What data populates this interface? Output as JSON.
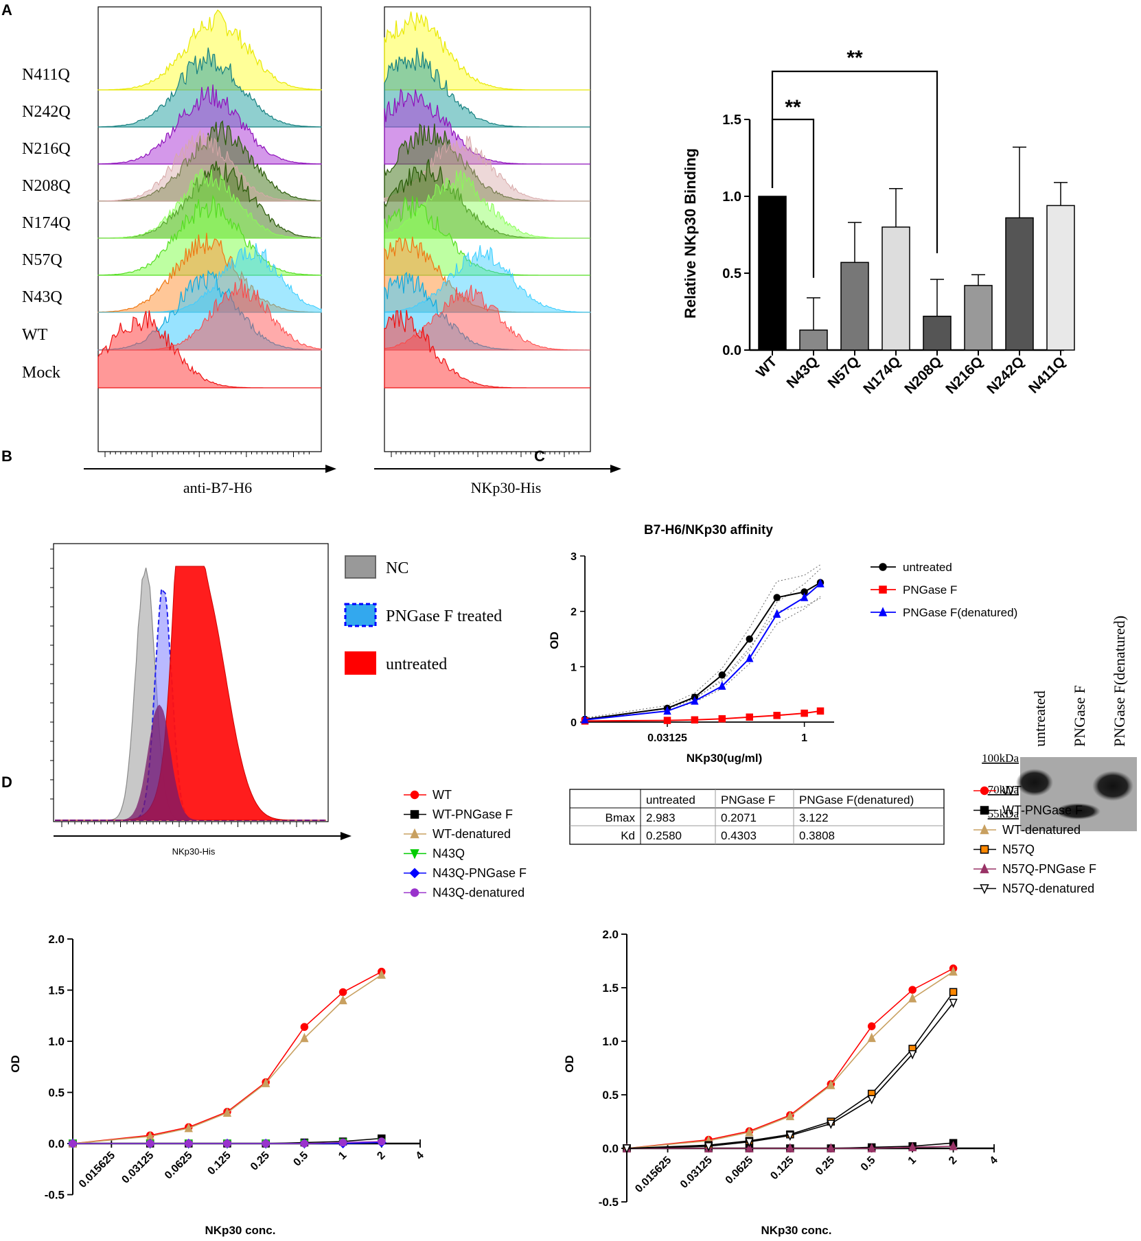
{
  "panel_letters": {
    "a": "A",
    "b": "B",
    "c": "C",
    "d": "D"
  },
  "colors": {
    "yellow": "#ffff33",
    "teal": "#1e9c9c",
    "purple": "#a31dcc",
    "rosy": "#c89090",
    "darkgreen": "#3a6e12",
    "lightgreen": "#66ee33",
    "orange": "#ff9933",
    "cyan": "#33ccff",
    "red": "#ff3333",
    "bar_black": "#000000",
    "bar_dark": "#555555",
    "bar_mid": "#888888",
    "bar_light": "#dddddd"
  },
  "chart_data": [
    {
      "type": "histogram-overlay",
      "panel": "A-left",
      "xlabel": "anti-B7-H6",
      "samples": [
        {
          "name": "N411Q",
          "color": "#ffff33",
          "peak_decade": 2.7
        },
        {
          "name": "N242Q",
          "color": "#1e9c9c",
          "peak_decade": 2.6
        },
        {
          "name": "N216Q",
          "color": "#a31dcc",
          "peak_decade": 2.6
        },
        {
          "name": "N208Q",
          "color": "#3a6e12",
          "peak_decade": 2.6,
          "overlay": "#c89090"
        },
        {
          "name": "N174Q",
          "color": "#3a6e12",
          "peak_decade": 2.6,
          "overlay": "#66ee33"
        },
        {
          "name": "N57Q",
          "color": "#66ee33",
          "peak_decade": 2.6
        },
        {
          "name": "N43Q",
          "color": "#ff9933",
          "peak_decade": 2.3
        },
        {
          "name": "WT",
          "color": "#33ccff",
          "peak_decade": 2.6
        },
        {
          "name": "Mock",
          "color": "#ff3333",
          "peak_decade": 0.9
        }
      ]
    },
    {
      "type": "histogram-overlay",
      "panel": "A-middle",
      "xlabel": "NKp30-His",
      "samples": [
        "N411Q",
        "N242Q",
        "N216Q",
        "N208Q",
        "N174Q",
        "N57Q",
        "N43Q",
        "WT",
        "Mock"
      ]
    },
    {
      "type": "bar",
      "panel": "A-right",
      "ylabel": "Relative NKp30 Binding",
      "categories": [
        "WT",
        "N43Q",
        "N57Q",
        "N174Q",
        "N208Q",
        "N216Q",
        "N242Q",
        "N411Q"
      ],
      "values": [
        1.0,
        0.13,
        0.57,
        0.8,
        0.22,
        0.42,
        0.86,
        0.94
      ],
      "errors": [
        0,
        0.21,
        0.26,
        0.25,
        0.24,
        0.07,
        0.46,
        0.15
      ],
      "bar_colors": [
        "#000000",
        "#888888",
        "#777777",
        "#dddddd",
        "#555555",
        "#999999",
        "#555555",
        "#e8e8e8"
      ],
      "ylim": [
        0,
        1.5
      ],
      "yticks": [
        "0.0",
        "0.5",
        "1.0",
        "1.5"
      ],
      "significance": [
        {
          "from": "WT",
          "to": "N43Q",
          "label": "**"
        },
        {
          "from": "WT",
          "to": "N208Q",
          "label": "**"
        }
      ]
    },
    {
      "type": "histogram-overlay",
      "panel": "B",
      "xlabel": "NKp30-His",
      "legend": [
        {
          "label": "NC",
          "color": "#999999"
        },
        {
          "label": "PNGase F treated",
          "color": "#33a0e0"
        },
        {
          "label": "untreated",
          "color": "#ff0000"
        }
      ]
    },
    {
      "type": "line",
      "panel": "C",
      "title": "B7-H6/NKp30 affinity",
      "xlabel": "NKp30(ug/ml)",
      "ylabel": "OD",
      "xscale": "log2",
      "x": [
        0.0039,
        0.0313,
        0.0625,
        0.125,
        0.25,
        0.5,
        1.0,
        1.5
      ],
      "xticks": [
        "0.03125",
        "1"
      ],
      "yticks": [
        "0",
        "1",
        "2",
        "3"
      ],
      "ylim": [
        0,
        3
      ],
      "series": [
        {
          "name": "untreated",
          "color": "#000000",
          "marker": "circle",
          "values": [
            0.05,
            0.25,
            0.45,
            0.85,
            1.5,
            2.25,
            2.35,
            2.52
          ]
        },
        {
          "name": "PNGase F",
          "color": "#ff0000",
          "marker": "square",
          "values": [
            0.02,
            0.03,
            0.04,
            0.06,
            0.09,
            0.12,
            0.16,
            0.2
          ]
        },
        {
          "name": "PNGase F(denatured)",
          "color": "#0000ff",
          "marker": "triangle",
          "values": [
            0.04,
            0.2,
            0.38,
            0.65,
            1.15,
            1.95,
            2.25,
            2.5
          ]
        }
      ],
      "table": {
        "headers": [
          "",
          "untreated",
          "PNGase F",
          "PNGase F(denatured)"
        ],
        "rows": [
          [
            "Bmax",
            "2.983",
            "0.2071",
            "3.122"
          ],
          [
            "Kd",
            "0.2580",
            "0.4303",
            "0.3808"
          ]
        ]
      }
    },
    {
      "type": "gel",
      "panel": "C-blot",
      "lanes": [
        "untreated",
        "PNGase F",
        "PNGase F(denatured)"
      ],
      "markers": [
        "100kDa",
        "70kDa",
        "55kDa"
      ]
    },
    {
      "type": "line",
      "panel": "D-left",
      "xlabel": "NKp30 conc.",
      "ylabel": "OD",
      "xscale": "log2",
      "x": [
        0.0078,
        0.0313,
        0.0625,
        0.125,
        0.25,
        0.5,
        1,
        2
      ],
      "xticks": [
        "0.015625",
        "0.03125",
        "0.0625",
        "0.125",
        "0.25",
        "0.5",
        "1",
        "2",
        "4"
      ],
      "yticks": [
        "-0.5",
        "0.0",
        "0.5",
        "1.0",
        "1.5",
        "2.0"
      ],
      "ylim": [
        -0.5,
        2.0
      ],
      "series": [
        {
          "name": "WT",
          "color": "#ff0000",
          "marker": "circle",
          "values": [
            0.0,
            0.08,
            0.16,
            0.31,
            0.6,
            1.14,
            1.48,
            1.68
          ]
        },
        {
          "name": "WT-PNGase F",
          "color": "#000000",
          "marker": "square",
          "values": [
            0,
            0,
            0,
            0,
            0,
            0.01,
            0.02,
            0.05
          ]
        },
        {
          "name": "WT-denatured",
          "color": "#c8a060",
          "marker": "triangle",
          "values": [
            0,
            0.07,
            0.15,
            0.3,
            0.59,
            1.03,
            1.4,
            1.65
          ]
        },
        {
          "name": "N43Q",
          "color": "#00cc00",
          "marker": "triangle-down",
          "values": [
            0,
            0,
            0,
            0,
            0,
            0,
            0.01,
            0.01
          ]
        },
        {
          "name": "N43Q-PNGase F",
          "color": "#0000ff",
          "marker": "diamond",
          "values": [
            0,
            0,
            0,
            0,
            0,
            0,
            0,
            0.01
          ]
        },
        {
          "name": "N43Q-denatured",
          "color": "#9933cc",
          "marker": "circle",
          "values": [
            0,
            0,
            0,
            0,
            0,
            0,
            0.01,
            0.02
          ]
        }
      ]
    },
    {
      "type": "line",
      "panel": "D-right",
      "xlabel": "NKp30 conc.",
      "ylabel": "OD",
      "xscale": "log2",
      "x": [
        0.0078,
        0.0313,
        0.0625,
        0.125,
        0.25,
        0.5,
        1,
        2
      ],
      "xticks": [
        "0.015625",
        "0.03125",
        "0.0625",
        "0.125",
        "0.25",
        "0.5",
        "1",
        "2",
        "4"
      ],
      "yticks": [
        "-0.5",
        "0.0",
        "0.5",
        "1.0",
        "1.5",
        "2.0"
      ],
      "ylim": [
        -0.5,
        2.0
      ],
      "series": [
        {
          "name": "WT",
          "color": "#ff0000",
          "marker": "circle",
          "values": [
            0.0,
            0.08,
            0.16,
            0.31,
            0.6,
            1.14,
            1.48,
            1.68
          ]
        },
        {
          "name": "WT-PNGase F",
          "color": "#000000",
          "marker": "square",
          "values": [
            0,
            0,
            0,
            0,
            0,
            0.01,
            0.02,
            0.05
          ]
        },
        {
          "name": "WT-denatured",
          "color": "#c8a060",
          "marker": "triangle",
          "values": [
            0,
            0.07,
            0.15,
            0.3,
            0.59,
            1.03,
            1.4,
            1.65
          ]
        },
        {
          "name": "N57Q",
          "color": "#ff8800",
          "marker": "square",
          "values": [
            0,
            0.03,
            0.07,
            0.13,
            0.25,
            0.51,
            0.93,
            1.46
          ]
        },
        {
          "name": "N57Q-PNGase F",
          "color": "#993366",
          "marker": "triangle",
          "values": [
            0,
            0,
            0,
            0,
            0,
            0,
            0.01,
            0.02
          ]
        },
        {
          "name": "N57Q-denatured",
          "color": "#ffffff",
          "marker": "triangle-down",
          "values": [
            0,
            0.02,
            0.06,
            0.12,
            0.23,
            0.46,
            0.88,
            1.36
          ]
        }
      ]
    }
  ]
}
